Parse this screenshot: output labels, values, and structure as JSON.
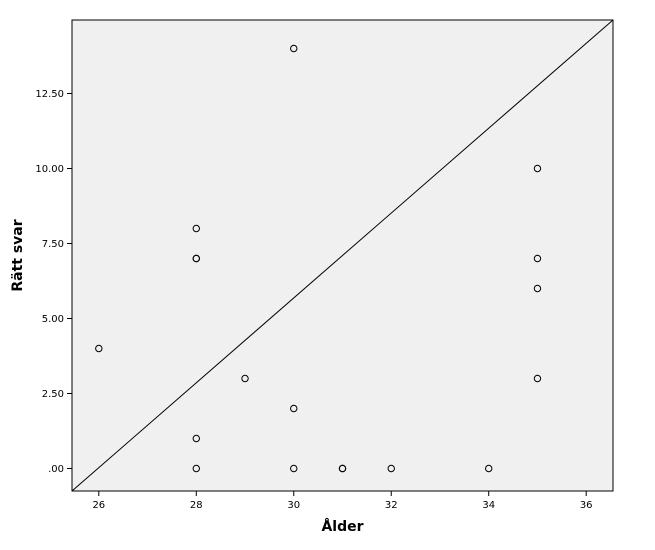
{
  "chart_data": {
    "type": "scatter",
    "title": "",
    "xlabel": "Ålder",
    "ylabel": "Rätt svar",
    "xlim": [
      25.45,
      36.55
    ],
    "ylim": [
      -0.75,
      14.95
    ],
    "x_ticks": [
      26,
      28,
      30,
      32,
      34,
      36
    ],
    "x_tick_labels": [
      "26",
      "28",
      "30",
      "32",
      "34",
      "36"
    ],
    "y_ticks": [
      0,
      2.5,
      5,
      7.5,
      10,
      12.5
    ],
    "y_tick_labels": [
      ".00",
      "2.50",
      "5.00",
      "7.50",
      "10.00",
      "12.50"
    ],
    "grid": false,
    "reference_line": {
      "from": [
        25.45,
        -0.75
      ],
      "to": [
        36.55,
        14.95
      ]
    },
    "colors": {
      "plot_background": "#f0f0f0",
      "frame": "#000000",
      "marker": "#000000"
    },
    "series": [
      {
        "marker": "hollow-circle",
        "points": [
          {
            "x": 26,
            "y": 4
          },
          {
            "x": 28,
            "y": 8
          },
          {
            "x": 28,
            "y": 7
          },
          {
            "x": 28,
            "y": 7
          },
          {
            "x": 28,
            "y": 1
          },
          {
            "x": 28,
            "y": 0
          },
          {
            "x": 29,
            "y": 3
          },
          {
            "x": 30,
            "y": 14
          },
          {
            "x": 30,
            "y": 2
          },
          {
            "x": 30,
            "y": 0
          },
          {
            "x": 31,
            "y": 0
          },
          {
            "x": 31,
            "y": 0
          },
          {
            "x": 32,
            "y": 0
          },
          {
            "x": 34,
            "y": 0
          },
          {
            "x": 35,
            "y": 10
          },
          {
            "x": 35,
            "y": 7
          },
          {
            "x": 35,
            "y": 6
          },
          {
            "x": 35,
            "y": 3
          }
        ]
      }
    ]
  }
}
